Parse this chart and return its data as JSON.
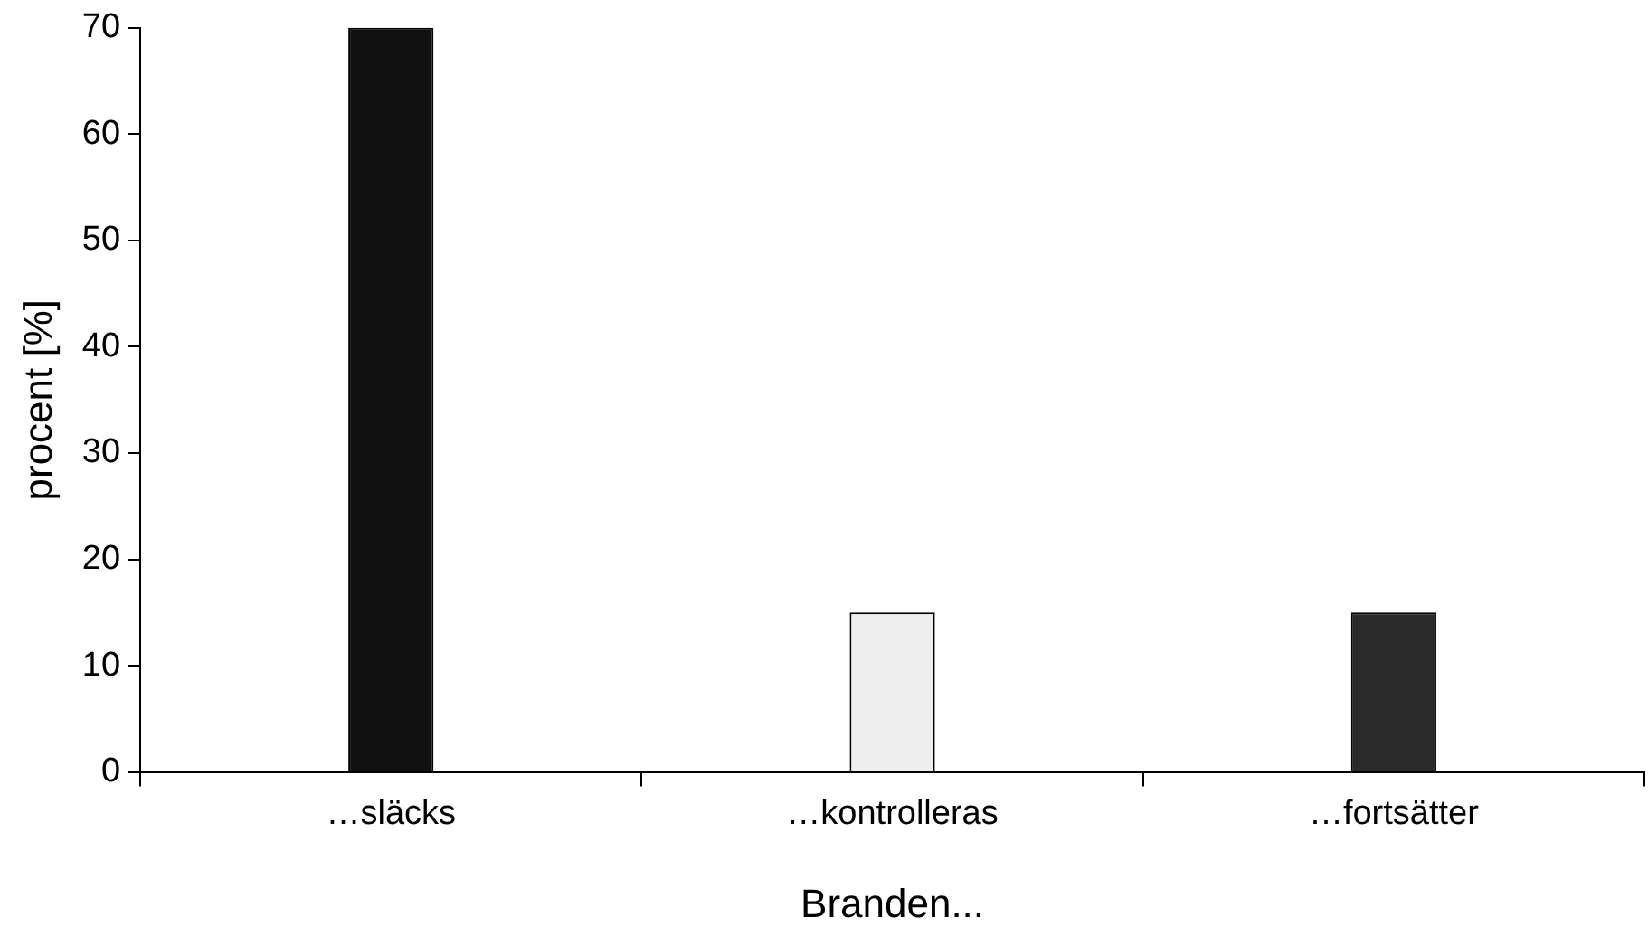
{
  "chart_data": {
    "type": "bar",
    "xlabel": "Branden...",
    "ylabel": "procent [%]",
    "categories": [
      "…släcks",
      "…kontrolleras",
      "…fortsätter"
    ],
    "values": [
      70,
      15,
      15
    ],
    "colors": [
      "#111111",
      "#eeeeee",
      "#2a2a2a"
    ],
    "ylim": [
      0,
      70
    ],
    "yticks": [
      0,
      10,
      20,
      30,
      40,
      50,
      60,
      70
    ],
    "grid": false,
    "legend": false
  }
}
